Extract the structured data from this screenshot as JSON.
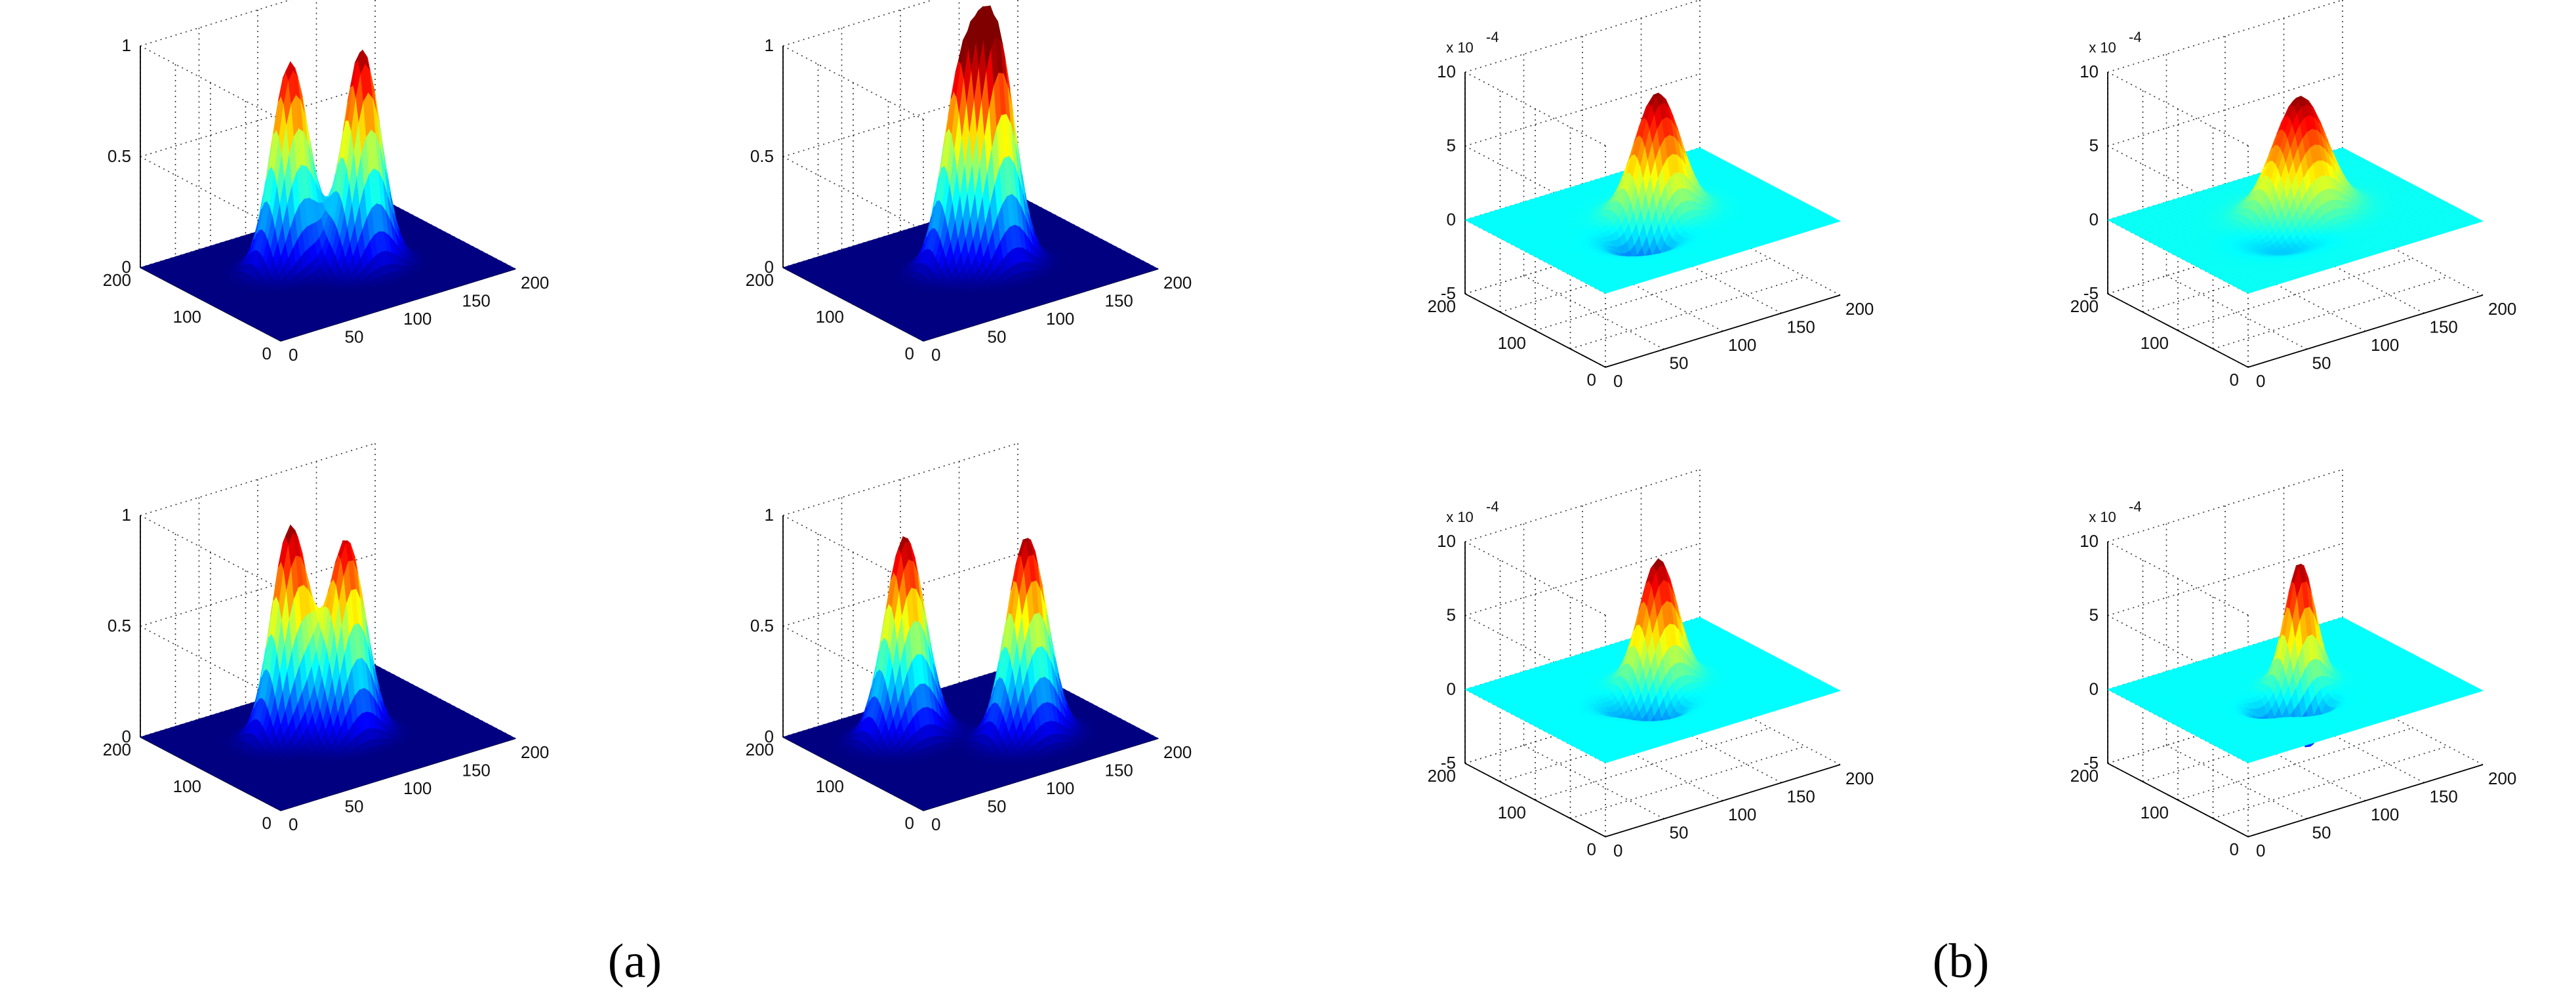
{
  "captions": [
    "(a)",
    "(b)"
  ],
  "chart_data": [
    {
      "type": "surface",
      "panel": "(a)",
      "xlim": [
        0,
        200
      ],
      "ylim": [
        0,
        200
      ],
      "zlim": [
        0,
        1
      ],
      "x_ticks": [
        "0",
        "50",
        "100",
        "150",
        "200"
      ],
      "y_ticks": [
        "0",
        "100",
        "200"
      ],
      "z_ticks": [
        "0",
        "0.5",
        "1"
      ],
      "peaks": [
        {
          "x": 80,
          "y": 120,
          "height": 0.93,
          "sigma": 14
        },
        {
          "x": 120,
          "y": 85,
          "height": 0.98,
          "sigma": 14
        }
      ]
    },
    {
      "type": "surface",
      "panel": "(a)",
      "xlim": [
        0,
        200
      ],
      "ylim": [
        0,
        200
      ],
      "zlim": [
        0,
        1
      ],
      "x_ticks": [
        "0",
        "50",
        "100",
        "150",
        "200"
      ],
      "y_ticks": [
        "0",
        "100",
        "200"
      ],
      "z_ticks": [
        "0",
        "0.5",
        "1"
      ],
      "peaks": [
        {
          "x": 95,
          "y": 105,
          "height": 0.83,
          "sigma": 14
        },
        {
          "x": 115,
          "y": 88,
          "height": 0.98,
          "sigma": 14
        }
      ]
    },
    {
      "type": "surface",
      "panel": "(a)",
      "xlim": [
        0,
        200
      ],
      "ylim": [
        0,
        200
      ],
      "zlim": [
        0,
        1
      ],
      "x_ticks": [
        "0",
        "50",
        "100",
        "150",
        "200"
      ],
      "y_ticks": [
        "0",
        "100",
        "200"
      ],
      "z_ticks": [
        "0",
        "0.5",
        "1"
      ],
      "peaks": [
        {
          "x": 80,
          "y": 120,
          "height": 0.95,
          "sigma": 14
        },
        {
          "x": 110,
          "y": 90,
          "height": 0.89,
          "sigma": 14
        }
      ]
    },
    {
      "type": "surface",
      "panel": "(a)",
      "xlim": [
        0,
        200
      ],
      "ylim": [
        0,
        200
      ],
      "zlim": [
        0,
        1
      ],
      "x_ticks": [
        "0",
        "50",
        "100",
        "150",
        "200"
      ],
      "y_ticks": [
        "0",
        "100",
        "200"
      ],
      "z_ticks": [
        "0",
        "0.5",
        "1"
      ],
      "peaks": [
        {
          "x": 65,
          "y": 135,
          "height": 0.91,
          "sigma": 15
        },
        {
          "x": 130,
          "y": 70,
          "height": 0.91,
          "sigma": 15
        }
      ]
    },
    {
      "type": "surface",
      "panel": "(b)",
      "xlim": [
        0,
        200
      ],
      "ylim": [
        0,
        200
      ],
      "zlim": [
        -5,
        10
      ],
      "z_multiplier": "x 10",
      "z_exponent": "-4",
      "x_ticks": [
        "0",
        "50",
        "100",
        "150",
        "200"
      ],
      "y_ticks": [
        "0",
        "100",
        "200"
      ],
      "z_ticks": [
        "-5",
        "0",
        "5",
        "10"
      ],
      "peaks": [
        {
          "x": 110,
          "y": 110,
          "height": 8.2,
          "sigma": 17
        },
        {
          "x": 80,
          "y": 80,
          "height": -2.6,
          "sigma": 16
        }
      ]
    },
    {
      "type": "surface",
      "panel": "(b)",
      "xlim": [
        0,
        200
      ],
      "ylim": [
        0,
        200
      ],
      "zlim": [
        -5,
        10
      ],
      "z_multiplier": "x 10",
      "z_exponent": "-4",
      "x_ticks": [
        "0",
        "50",
        "100",
        "150",
        "200"
      ],
      "y_ticks": [
        "0",
        "100",
        "200"
      ],
      "z_ticks": [
        "-5",
        "0",
        "5",
        "10"
      ],
      "peaks": [
        {
          "x": 110,
          "y": 110,
          "height": 8.0,
          "sigma": 20
        },
        {
          "x": 80,
          "y": 80,
          "height": -1.2,
          "sigma": 20
        }
      ]
    },
    {
      "type": "surface",
      "panel": "(b)",
      "xlim": [
        0,
        200
      ],
      "ylim": [
        0,
        200
      ],
      "zlim": [
        -5,
        10
      ],
      "z_multiplier": "x 10",
      "z_exponent": "-4",
      "x_ticks": [
        "0",
        "50",
        "100",
        "150",
        "200"
      ],
      "y_ticks": [
        "0",
        "100",
        "200"
      ],
      "z_ticks": [
        "-5",
        "0",
        "5",
        "10"
      ],
      "peaks": [
        {
          "x": 112,
          "y": 112,
          "height": 8.3,
          "sigma": 14
        },
        {
          "x": 88,
          "y": 72,
          "height": -2.4,
          "sigma": 12
        },
        {
          "x": 72,
          "y": 95,
          "height": -1.2,
          "sigma": 12
        }
      ]
    },
    {
      "type": "surface",
      "panel": "(b)",
      "xlim": [
        0,
        200
      ],
      "ylim": [
        0,
        200
      ],
      "zlim": [
        -5,
        10
      ],
      "z_multiplier": "x 10",
      "z_exponent": "-4",
      "x_ticks": [
        "0",
        "50",
        "100",
        "150",
        "200"
      ],
      "y_ticks": [
        "0",
        "100",
        "200"
      ],
      "z_ticks": [
        "-5",
        "0",
        "5",
        "10"
      ],
      "peaks": [
        {
          "x": 110,
          "y": 110,
          "height": 8.2,
          "sigma": 11
        },
        {
          "x": 95,
          "y": 72,
          "height": -3.0,
          "sigma": 10
        },
        {
          "x": 72,
          "y": 88,
          "height": -2.4,
          "sigma": 10
        }
      ]
    }
  ]
}
